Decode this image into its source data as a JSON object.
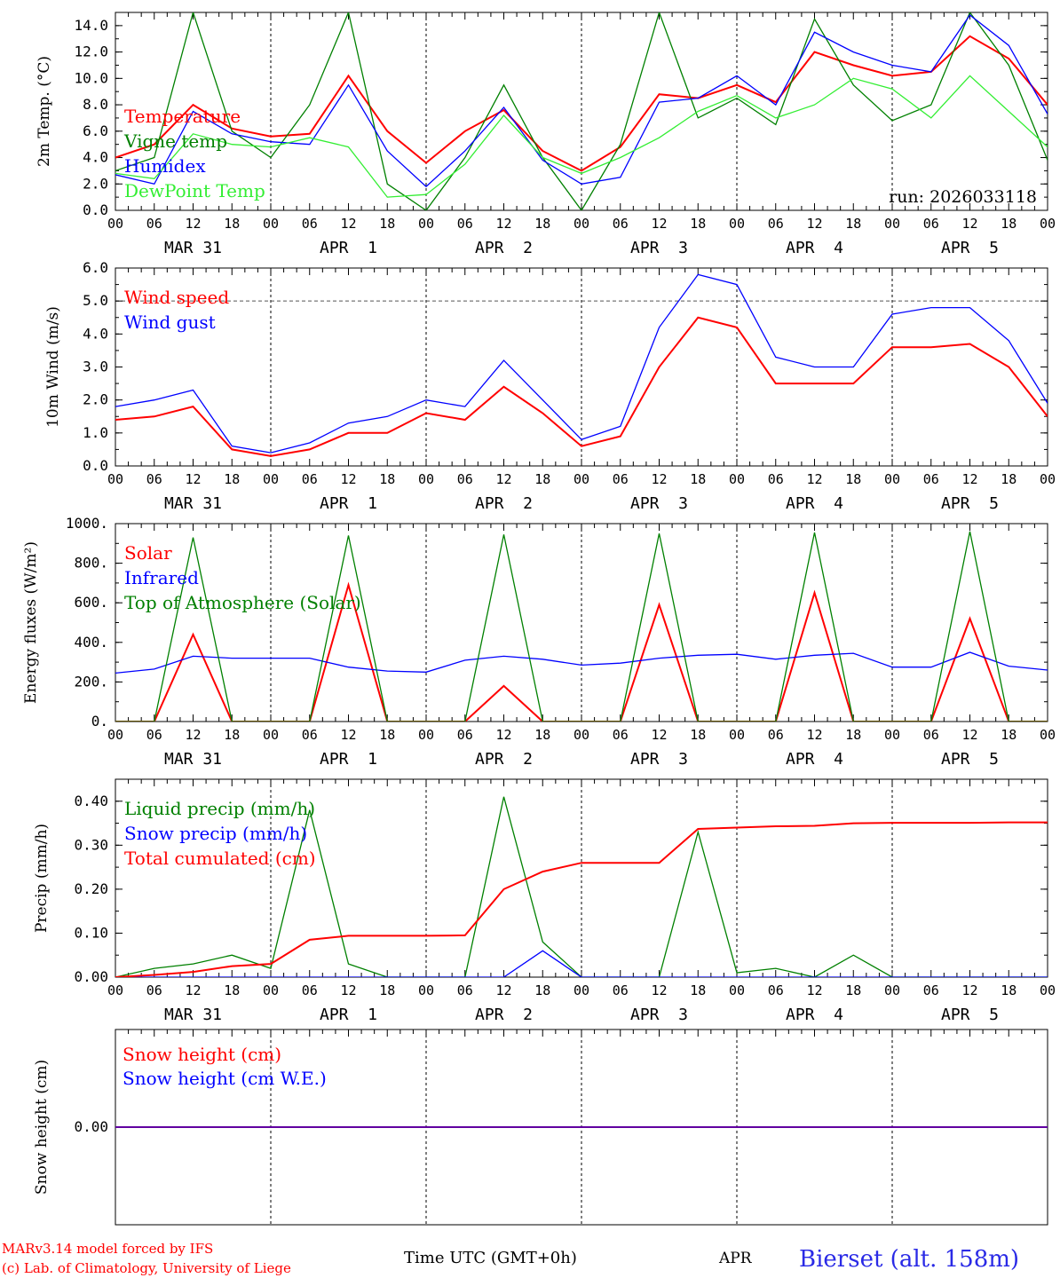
{
  "run_label": "run: 2026033118",
  "x_axis": {
    "hour_labels": [
      "00",
      "06",
      "12",
      "18",
      "00",
      "06",
      "12",
      "18",
      "00",
      "06",
      "12",
      "18",
      "00",
      "06",
      "12",
      "18",
      "00",
      "06",
      "12",
      "18",
      "00",
      "06",
      "12",
      "18",
      "00"
    ],
    "day_labels": [
      "MAR 31",
      "APR  1",
      "APR  2",
      "APR  3",
      "APR  4",
      "APR  5"
    ]
  },
  "footer": {
    "model": "MARv3.14 model forced by IFS",
    "credit": "(c) Lab. of Climatology, University of Liege",
    "xlabel": "Time UTC (GMT+0h)",
    "month": "APR",
    "station": "Bierset (alt. 158m)"
  },
  "colors": {
    "red": "#ff0000",
    "green": "#008000",
    "blue": "#0000ff",
    "lightgreen": "#33ee33"
  },
  "chart_data": [
    {
      "type": "line",
      "title": "2m Temp.",
      "ylabel": "2m Temp. (°C)",
      "ylim": [
        0,
        15
      ],
      "yticks": [
        "0.0",
        "2.0",
        "4.0",
        "6.0",
        "8.0",
        "10.0",
        "12.0",
        "14.0"
      ],
      "x_hours": [
        0,
        6,
        12,
        18,
        24,
        30,
        36,
        42,
        48,
        54,
        60,
        66,
        72,
        78,
        84,
        90,
        96,
        102,
        108,
        114,
        120,
        126,
        132,
        138,
        144
      ],
      "series": [
        {
          "name": "Temperature",
          "color": "red",
          "values": [
            4.0,
            5.0,
            8.0,
            6.2,
            5.6,
            5.8,
            10.2,
            6.0,
            3.6,
            6.0,
            7.6,
            4.5,
            3.0,
            4.8,
            8.8,
            8.5,
            9.5,
            8.2,
            12.0,
            11.0,
            10.2,
            10.5,
            13.2,
            11.5,
            8.0
          ]
        },
        {
          "name": "Vigne temp",
          "color": "green",
          "values": [
            3.0,
            4.0,
            15.0,
            6.0,
            4.0,
            8.0,
            15.0,
            2.0,
            0.0,
            4.0,
            9.5,
            4.0,
            0.0,
            5.0,
            15.0,
            7.0,
            8.5,
            6.5,
            14.5,
            9.5,
            6.8,
            8.0,
            15.0,
            11.0,
            3.8
          ]
        },
        {
          "name": "Humidex",
          "color": "blue",
          "values": [
            2.7,
            2.0,
            7.5,
            5.8,
            5.2,
            5.0,
            9.5,
            4.5,
            1.8,
            4.5,
            7.8,
            3.8,
            2.0,
            2.5,
            8.2,
            8.5,
            10.2,
            8.0,
            13.5,
            12.0,
            11.0,
            10.5,
            14.8,
            12.5,
            7.3
          ]
        },
        {
          "name": "DewPoint Temp",
          "color": "lightgreen",
          "values": [
            2.8,
            2.4,
            5.8,
            5.0,
            4.8,
            5.5,
            4.8,
            1.0,
            1.2,
            3.5,
            7.2,
            4.0,
            2.8,
            4.0,
            5.5,
            7.5,
            8.7,
            7.0,
            8.0,
            10.0,
            9.2,
            7.0,
            10.2,
            7.5,
            4.8
          ]
        }
      ],
      "legend": [
        "Temperature",
        "Vigne temp",
        "Humidex",
        "DewPoint Temp"
      ]
    },
    {
      "type": "line",
      "title": "10m Wind",
      "ylabel": "10m Wind (m/s)",
      "ylim": [
        0,
        6
      ],
      "yticks": [
        "0.0",
        "1.0",
        "2.0",
        "3.0",
        "4.0",
        "5.0",
        "6.0"
      ],
      "ref_line": 5.0,
      "x_hours": [
        0,
        6,
        12,
        18,
        24,
        30,
        36,
        42,
        48,
        54,
        60,
        66,
        72,
        78,
        84,
        90,
        96,
        102,
        108,
        114,
        120,
        126,
        132,
        138,
        144
      ],
      "series": [
        {
          "name": "Wind speed",
          "color": "red",
          "values": [
            1.4,
            1.5,
            1.8,
            0.5,
            0.3,
            0.5,
            1.0,
            1.0,
            1.6,
            1.4,
            2.4,
            1.6,
            0.6,
            0.9,
            3.0,
            4.5,
            4.2,
            2.5,
            2.5,
            2.5,
            3.6,
            3.6,
            3.7,
            3.0,
            1.5
          ]
        },
        {
          "name": "Wind gust",
          "color": "blue",
          "values": [
            1.8,
            2.0,
            2.3,
            0.6,
            0.4,
            0.7,
            1.3,
            1.5,
            2.0,
            1.8,
            3.2,
            2.0,
            0.8,
            1.2,
            4.2,
            5.8,
            5.5,
            3.3,
            3.0,
            3.0,
            4.6,
            4.8,
            4.8,
            3.8,
            1.9
          ]
        }
      ],
      "legend": [
        "Wind speed",
        "Wind gust"
      ]
    },
    {
      "type": "line",
      "title": "Energy fluxes",
      "ylabel": "Energy fluxes (W/m²)",
      "ylim": [
        0,
        1000
      ],
      "yticks": [
        "0.",
        "200.",
        "400.",
        "600.",
        "800.",
        "1000."
      ],
      "x_hours": [
        0,
        6,
        12,
        18,
        24,
        30,
        36,
        42,
        48,
        54,
        60,
        66,
        72,
        78,
        84,
        90,
        96,
        102,
        108,
        114,
        120,
        126,
        132,
        138,
        144
      ],
      "series": [
        {
          "name": "Solar",
          "color": "red",
          "values": [
            0,
            0,
            440,
            0,
            0,
            0,
            690,
            0,
            0,
            0,
            180,
            0,
            0,
            0,
            590,
            0,
            0,
            0,
            650,
            0,
            0,
            0,
            520,
            0,
            0
          ]
        },
        {
          "name": "Infrared",
          "color": "blue",
          "values": [
            245,
            265,
            330,
            320,
            320,
            320,
            275,
            255,
            250,
            310,
            330,
            315,
            285,
            295,
            320,
            335,
            340,
            315,
            335,
            345,
            275,
            275,
            350,
            280,
            260
          ]
        },
        {
          "name": "Top of Atmosphere (Solar)",
          "color": "green",
          "values": [
            0,
            0,
            930,
            0,
            0,
            0,
            940,
            0,
            0,
            0,
            945,
            0,
            0,
            0,
            950,
            0,
            0,
            0,
            955,
            0,
            0,
            0,
            960,
            0,
            0
          ]
        }
      ],
      "legend": [
        "Solar",
        "Infrared",
        "Top of Atmosphere (Solar)"
      ]
    },
    {
      "type": "line",
      "title": "Precip",
      "ylabel": "Precip (mm/h)",
      "ylim": [
        0,
        0.45
      ],
      "yticks": [
        "0.00",
        "0.10",
        "0.20",
        "0.30",
        "0.40"
      ],
      "x_hours": [
        0,
        6,
        12,
        18,
        24,
        30,
        36,
        42,
        48,
        54,
        60,
        66,
        72,
        78,
        84,
        90,
        96,
        102,
        108,
        114,
        120,
        126,
        132,
        138,
        144
      ],
      "series": [
        {
          "name": "Liquid precip (mm/h)",
          "color": "green",
          "values": [
            0,
            0.02,
            0.03,
            0.05,
            0.02,
            0.38,
            0.03,
            0,
            0,
            0,
            0.41,
            0.08,
            0,
            0,
            0,
            0.33,
            0.01,
            0.02,
            0,
            0.05,
            0,
            0,
            0,
            0,
            0
          ]
        },
        {
          "name": "Snow precip (mm/h)",
          "color": "blue",
          "values": [
            0,
            0,
            0,
            0,
            0,
            0,
            0,
            0,
            0,
            0,
            0,
            0.06,
            0,
            0,
            0,
            0,
            0,
            0,
            0,
            0,
            0,
            0,
            0,
            0,
            0
          ]
        },
        {
          "name": "Total cumulated (cm)",
          "color": "red",
          "values": [
            0,
            0.005,
            0.012,
            0.025,
            0.03,
            0.085,
            0.094,
            0.094,
            0.094,
            0.095,
            0.2,
            0.24,
            0.26,
            0.26,
            0.26,
            0.337,
            0.34,
            0.343,
            0.344,
            0.35,
            0.351,
            0.351,
            0.351,
            0.352,
            0.352
          ]
        }
      ],
      "legend": [
        "Liquid precip (mm/h)",
        "Snow precip (mm/h)",
        "Total cumulated (cm)"
      ]
    },
    {
      "type": "line",
      "title": "Snow height",
      "ylabel": "Snow height (cm)",
      "ylim": [
        -1,
        1
      ],
      "yticks": [
        "0.00"
      ],
      "x_hours": [
        0,
        144
      ],
      "series": [
        {
          "name": "Snow height (cm)",
          "color": "red",
          "values": [
            0,
            0
          ]
        },
        {
          "name": "Snow height (cm W.E.)",
          "color": "blue",
          "values": [
            0,
            0
          ]
        }
      ],
      "legend": [
        "Snow height (cm)",
        "Snow height (cm W.E.)"
      ]
    }
  ]
}
